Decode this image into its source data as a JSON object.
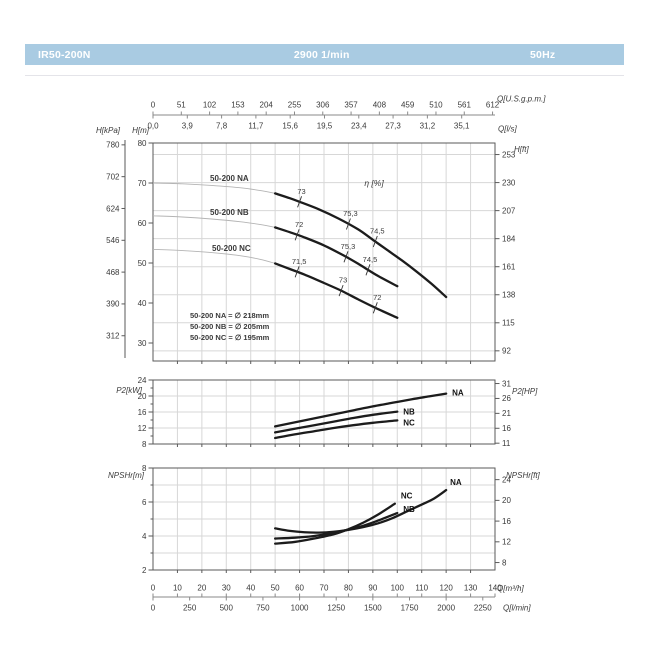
{
  "header": {
    "model": "IR50-200N",
    "speed": "2900 1/min",
    "frequency": "50Hz",
    "bg": "#a9cbe2",
    "text_color": "#ffffff"
  },
  "colors": {
    "curve": "#1c1c1c",
    "curve_thin": "#b4b4b4",
    "grid": "#d7d7d7",
    "axis": "#5a5a5a",
    "scale_line": "#8a8a8a",
    "text": "#3a3a3a"
  },
  "x_axes": {
    "top_outer": {
      "unit": "Q[U.S.g.p.m.]",
      "factor": 0.2271247,
      "ticks": [
        0,
        51,
        102,
        153,
        204,
        255,
        306,
        357,
        408,
        459,
        510,
        561,
        612
      ]
    },
    "top_inner": {
      "unit": "Q[l/s]",
      "factor": 3.6,
      "ticks": [
        {
          "v": 0,
          "label": "0,0"
        },
        {
          "v": 3.9,
          "label": "3,9"
        },
        {
          "v": 7.8,
          "label": "7,8"
        },
        {
          "v": 11.7,
          "label": "11,7"
        },
        {
          "v": 15.6,
          "label": "15,6"
        },
        {
          "v": 19.5,
          "label": "19,5"
        },
        {
          "v": 23.4,
          "label": "23,4"
        },
        {
          "v": 27.3,
          "label": "27,3"
        },
        {
          "v": 31.2,
          "label": "31,2"
        },
        {
          "v": 35.1,
          "label": "35,1"
        }
      ]
    },
    "bottom_inner": {
      "unit": "Q[m³/h]",
      "factor": 1,
      "ticks": [
        0,
        10,
        20,
        30,
        40,
        50,
        60,
        70,
        80,
        90,
        100,
        110,
        120,
        130,
        140
      ]
    },
    "bottom_outer": {
      "unit": "Q[l/min]",
      "factor": 0.06,
      "ticks": [
        0,
        250,
        500,
        750,
        1000,
        1250,
        1500,
        1750,
        2000,
        2250
      ]
    }
  },
  "chart_data": [
    {
      "id": "head",
      "type": "line",
      "xlabel": "Q[m³/h]",
      "xlim": [
        0,
        140
      ],
      "ylim": [
        25.5,
        80
      ],
      "eta_label": "η [%]",
      "axes": {
        "left_outer": {
          "unit": "H[kPa]",
          "to_base": 0.101972,
          "ticks": [
            780,
            702,
            624,
            546,
            468,
            390,
            312
          ]
        },
        "left": {
          "unit": "H[m]",
          "ticks": [
            80,
            70,
            60,
            50,
            40,
            30
          ]
        },
        "right": {
          "unit": "H[ft]",
          "to_base": 0.3048,
          "ticks": [
            253,
            230,
            207,
            184,
            161,
            138,
            115,
            92
          ]
        }
      },
      "series": [
        {
          "name": "NA",
          "label": "50-200 NA",
          "thin": [
            [
              0,
              70
            ],
            [
              12,
              69.8
            ],
            [
              24,
              69.4
            ],
            [
              36,
              68.8
            ],
            [
              44,
              68.1
            ],
            [
              50,
              67.4
            ]
          ],
          "points": [
            [
              50,
              67.4
            ],
            [
              56,
              66.2
            ],
            [
              60,
              65.3
            ],
            [
              68,
              63.4
            ],
            [
              76,
              61.1
            ],
            [
              84,
              58.4
            ],
            [
              90,
              55.8
            ],
            [
              96,
              53.2
            ],
            [
              102,
              50.6
            ],
            [
              108,
              47.8
            ],
            [
              114,
              44.8
            ],
            [
              120,
              41.5
            ]
          ],
          "eff_ticks": [
            {
              "q": 60,
              "label": "73"
            },
            {
              "q": 80,
              "label": "75,3"
            },
            {
              "q": 91,
              "label": "74,5"
            }
          ]
        },
        {
          "name": "NB",
          "label": "50-200 NB",
          "thin": [
            [
              0,
              61.8
            ],
            [
              12,
              61.5
            ],
            [
              24,
              61.0
            ],
            [
              36,
              60.3
            ],
            [
              44,
              59.6
            ],
            [
              50,
              58.9
            ]
          ],
          "points": [
            [
              50,
              58.9
            ],
            [
              56,
              57.7
            ],
            [
              62,
              56.4
            ],
            [
              70,
              54.4
            ],
            [
              78,
              51.9
            ],
            [
              84,
              49.8
            ],
            [
              92,
              46.8
            ],
            [
              100,
              44.2
            ]
          ],
          "eff_ticks": [
            {
              "q": 59,
              "label": "72"
            },
            {
              "q": 79,
              "label": "75,3"
            },
            {
              "q": 88,
              "label": "74,5"
            }
          ]
        },
        {
          "name": "NC",
          "label": "50-200 NC",
          "thin": [
            [
              0,
              53.4
            ],
            [
              12,
              53.1
            ],
            [
              24,
              52.6
            ],
            [
              36,
              51.8
            ],
            [
              44,
              50.9
            ],
            [
              50,
              49.9
            ]
          ],
          "points": [
            [
              50,
              49.9
            ],
            [
              56,
              48.5
            ],
            [
              62,
              47.1
            ],
            [
              70,
              45.0
            ],
            [
              77,
              43.1
            ],
            [
              84,
              40.9
            ],
            [
              91,
              38.8
            ],
            [
              100,
              36.3
            ]
          ],
          "eff_ticks": [
            {
              "q": 59,
              "label": "71,5"
            },
            {
              "q": 77,
              "label": "73"
            },
            {
              "q": 91,
              "label": "72"
            }
          ]
        }
      ],
      "legend": [
        "50-200 NA = ∅ 218mm",
        "50-200 NB = ∅ 205mm",
        "50-200 NC = ∅ 195mm"
      ]
    },
    {
      "id": "power",
      "type": "line",
      "xlabel": "Q[m³/h]",
      "xlim": [
        0,
        140
      ],
      "ylim": [
        8,
        24
      ],
      "grid_y": [
        12,
        16,
        20
      ],
      "axes": {
        "left": {
          "unit": "P2[kW]",
          "ticks": [
            24,
            20,
            16,
            12,
            8
          ],
          "minor": [
            22,
            18,
            14,
            10
          ]
        },
        "right": {
          "unit": "P2[HP]",
          "to_base": 0.7457,
          "ticks": [
            31,
            26,
            21,
            16,
            11
          ]
        }
      },
      "series": [
        {
          "name": "NA",
          "points": [
            [
              50,
              12.4
            ],
            [
              58,
              13.4
            ],
            [
              66,
              14.4
            ],
            [
              74,
              15.4
            ],
            [
              82,
              16.4
            ],
            [
              90,
              17.4
            ],
            [
              98,
              18.3
            ],
            [
              106,
              19.2
            ],
            [
              113,
              19.9
            ],
            [
              120,
              20.6
            ]
          ],
          "label_offset": [
            6,
            -1
          ]
        },
        {
          "name": "NB",
          "points": [
            [
              50,
              10.9
            ],
            [
              58,
              11.8
            ],
            [
              66,
              12.7
            ],
            [
              74,
              13.6
            ],
            [
              82,
              14.5
            ],
            [
              90,
              15.3
            ],
            [
              100,
              16.1
            ]
          ],
          "label_offset": [
            6,
            0
          ]
        },
        {
          "name": "NC",
          "points": [
            [
              50,
              9.5
            ],
            [
              58,
              10.4
            ],
            [
              66,
              11.2
            ],
            [
              74,
              12.0
            ],
            [
              82,
              12.7
            ],
            [
              90,
              13.3
            ],
            [
              100,
              13.9
            ]
          ],
          "label_offset": [
            6,
            2
          ]
        }
      ]
    },
    {
      "id": "npsh",
      "type": "line",
      "xlabel": "Q[m³/h]",
      "xlim": [
        0,
        140
      ],
      "ylim": [
        2,
        8
      ],
      "grid_y": [
        3,
        4,
        5,
        6,
        7
      ],
      "axes": {
        "left": {
          "unit": "NPSHr[m]",
          "ticks": [
            8,
            6,
            4,
            2
          ],
          "minor": [
            7,
            5,
            3
          ]
        },
        "right": {
          "unit": "NPSHr[ft]",
          "to_base": 0.3048,
          "ticks": [
            24,
            20,
            16,
            12,
            8
          ]
        }
      },
      "series": [
        {
          "name": "NA",
          "points": [
            [
              50,
              4.45
            ],
            [
              56,
              4.3
            ],
            [
              62,
              4.22
            ],
            [
              68,
              4.2
            ],
            [
              74,
              4.25
            ],
            [
              80,
              4.36
            ],
            [
              86,
              4.52
            ],
            [
              92,
              4.74
            ],
            [
              98,
              5.05
            ],
            [
              104,
              5.45
            ],
            [
              110,
              5.85
            ],
            [
              115,
              6.2
            ],
            [
              120,
              6.7
            ]
          ],
          "label_offset": [
            4,
            -8
          ]
        },
        {
          "name": "NB",
          "points": [
            [
              50,
              3.85
            ],
            [
              58,
              3.9
            ],
            [
              66,
              4.0
            ],
            [
              74,
              4.18
            ],
            [
              80,
              4.38
            ],
            [
              86,
              4.6
            ],
            [
              92,
              4.9
            ],
            [
              100,
              5.35
            ]
          ],
          "label_offset": [
            6,
            -4
          ]
        },
        {
          "name": "NC",
          "points": [
            [
              50,
              3.55
            ],
            [
              58,
              3.65
            ],
            [
              66,
              3.85
            ],
            [
              74,
              4.1
            ],
            [
              80,
              4.4
            ],
            [
              86,
              4.78
            ],
            [
              92,
              5.25
            ],
            [
              99,
              5.9
            ]
          ],
          "label_offset": [
            6,
            -8
          ]
        }
      ]
    }
  ]
}
